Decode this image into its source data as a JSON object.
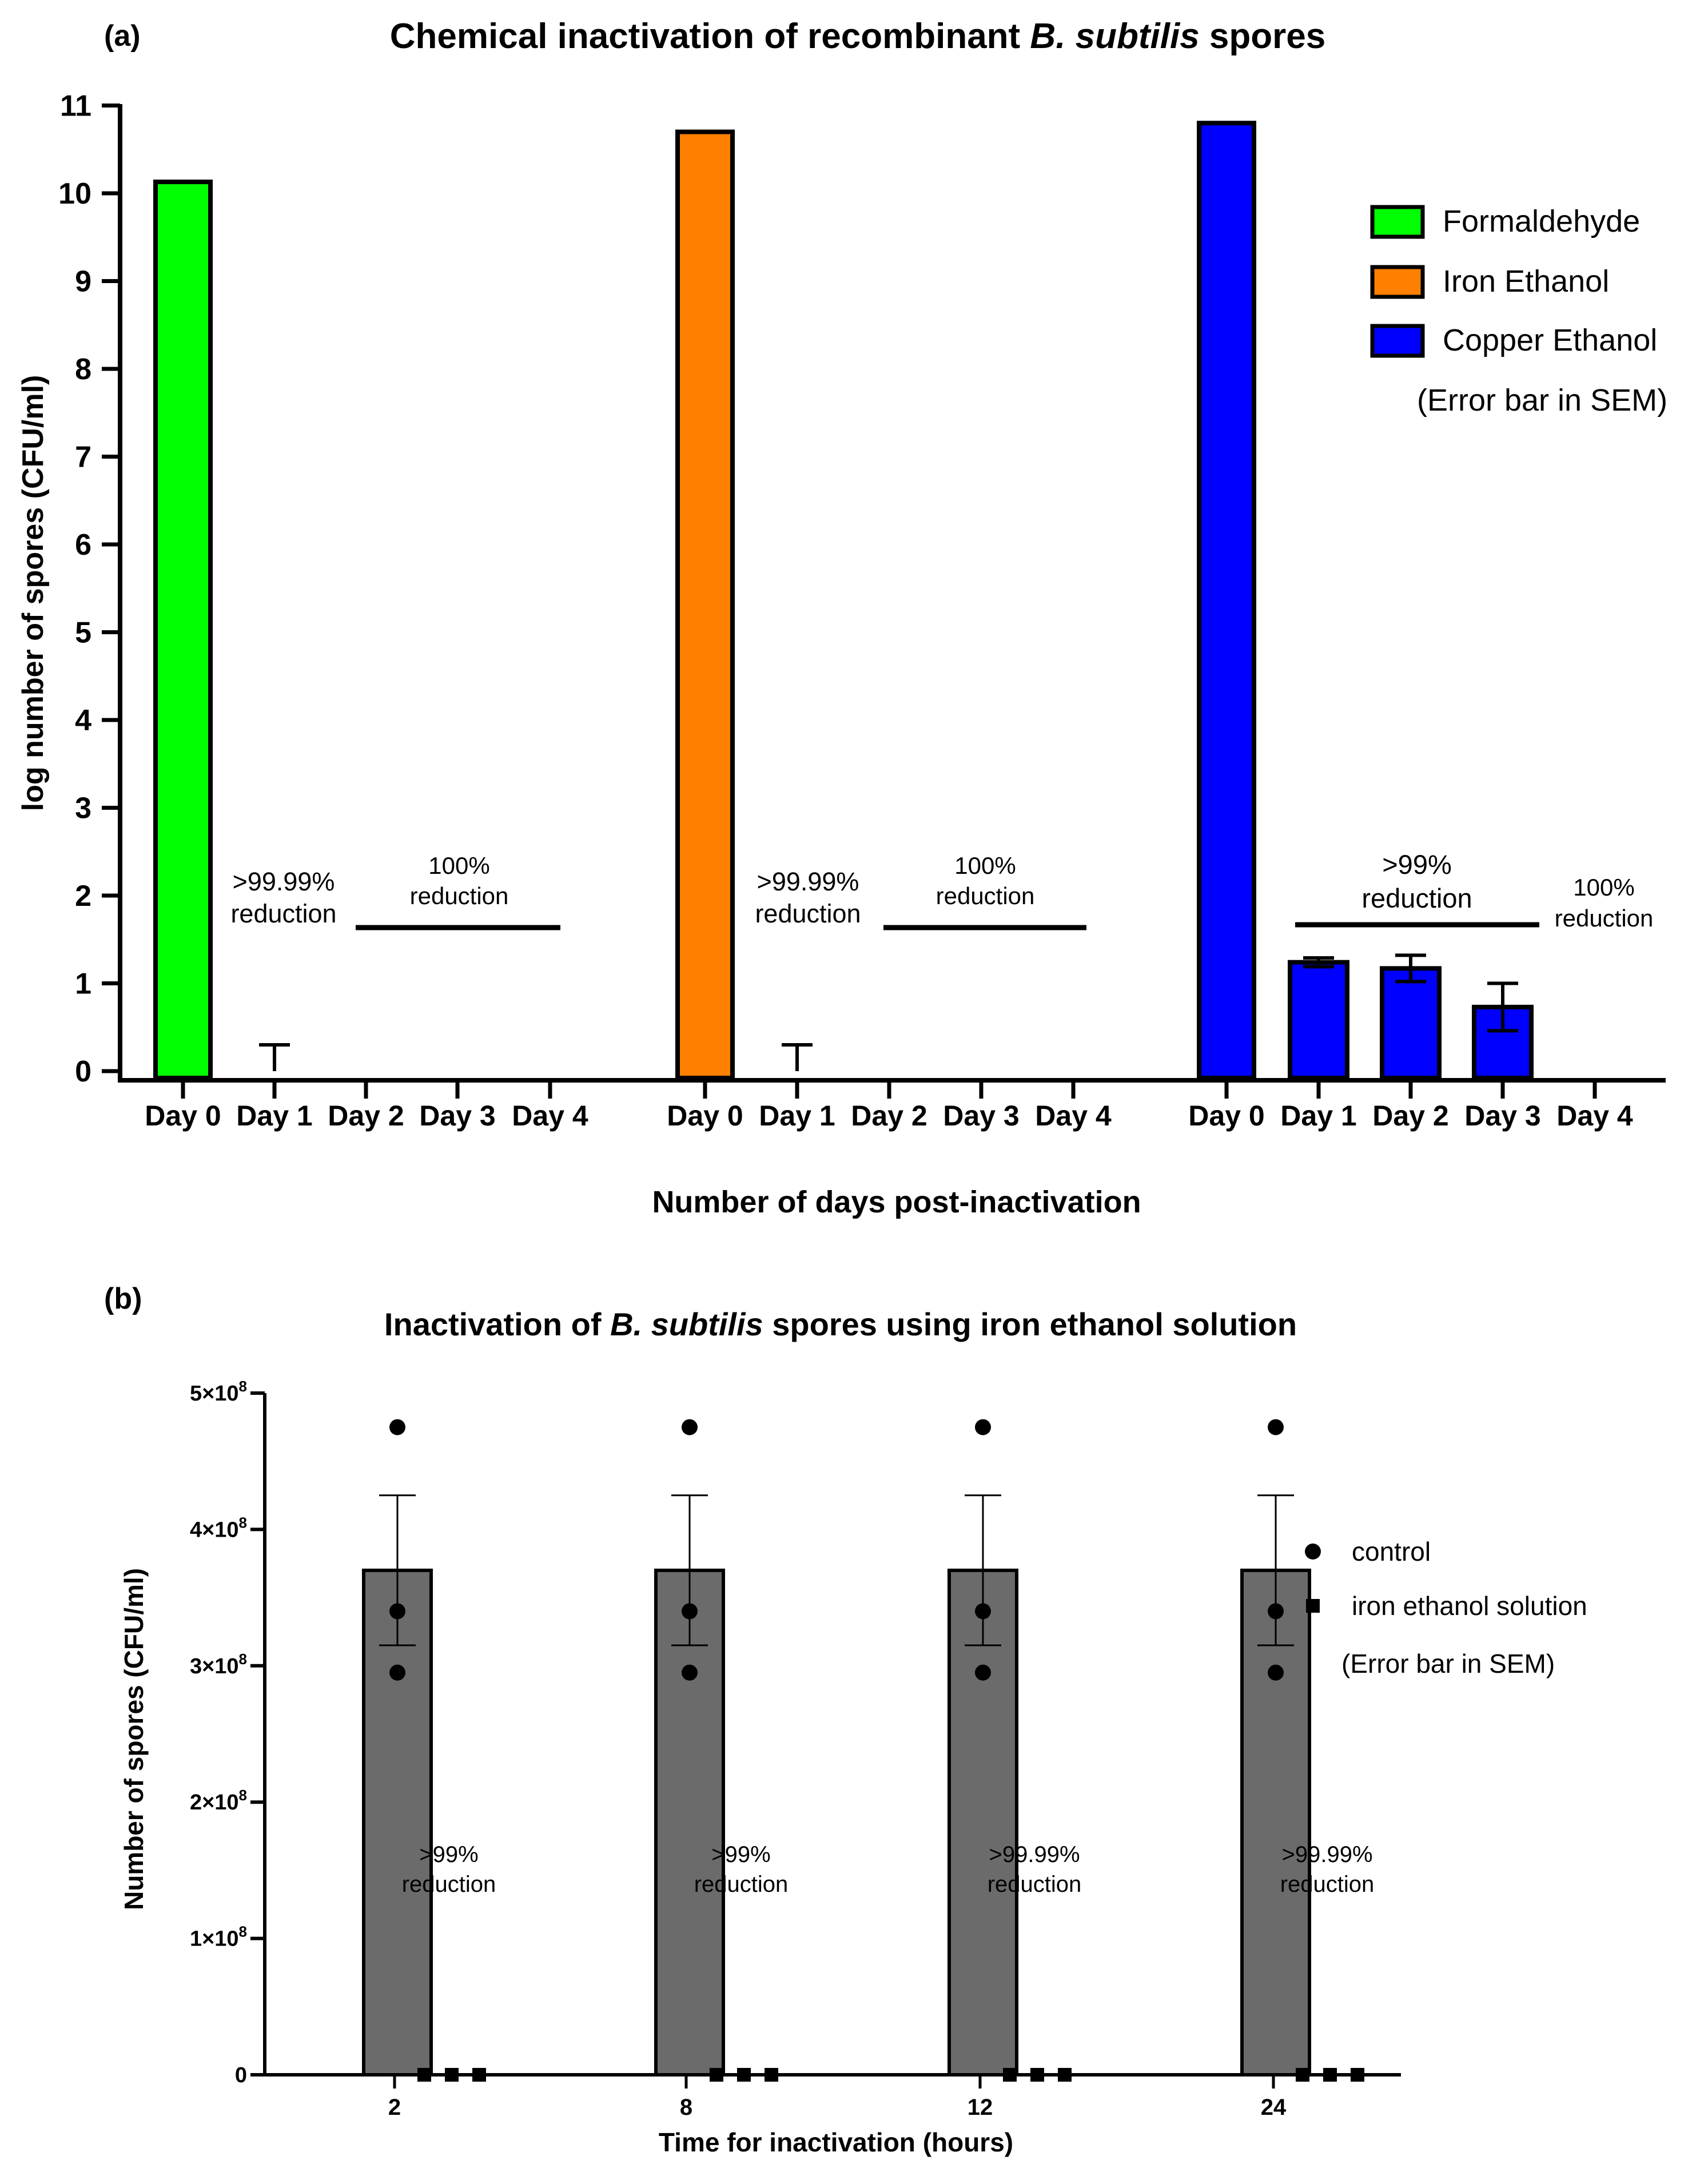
{
  "chart_data": [
    {
      "panel_label": "(a)",
      "type": "bar",
      "title_parts": [
        "Chemical inactivation of recombinant ",
        "B. subtilis",
        " spores"
      ],
      "xlabel": "Number of days post-inactivation",
      "ylabel": "log number of spores (CFU/ml)",
      "ylim": [
        0,
        11
      ],
      "yticks": [
        "0",
        "1",
        "2",
        "3",
        "4",
        "5",
        "6",
        "7",
        "8",
        "9",
        "10",
        "11"
      ],
      "categories": [
        "Day 0",
        "Day 1",
        "Day 2",
        "Day 3",
        "Day 4"
      ],
      "legend_note": "(Error bar in SEM)",
      "series": [
        {
          "name": "Formaldehyde",
          "color": "#00ff00",
          "values": [
            10.13,
            0,
            0,
            0,
            0
          ],
          "sem": [
            0,
            0.3,
            0,
            0,
            0
          ]
        },
        {
          "name": "Iron Ethanol",
          "color": "#ff8000",
          "values": [
            10.7,
            0,
            0,
            0,
            0
          ],
          "sem": [
            0,
            0.3,
            0,
            0,
            0
          ]
        },
        {
          "name": "Copper Ethanol",
          "color": "#0000ff",
          "values": [
            10.8,
            1.24,
            1.17,
            0.73,
            0
          ],
          "sem": [
            0,
            0.05,
            0.15,
            0.27,
            0
          ]
        }
      ],
      "annotations": [
        {
          "group": 0,
          "lines": [
            ">99.99%",
            "reduction"
          ]
        },
        {
          "group": 0,
          "lines": [
            "100%",
            "reduction"
          ]
        },
        {
          "group": 1,
          "lines": [
            ">99.99%",
            "reduction"
          ]
        },
        {
          "group": 1,
          "lines": [
            "100%",
            "reduction"
          ]
        },
        {
          "group": 2,
          "lines": [
            ">99%",
            "reduction"
          ]
        },
        {
          "group": 2,
          "lines": [
            "100%",
            "reduction"
          ]
        }
      ]
    },
    {
      "panel_label": "(b)",
      "type": "bar",
      "title_parts": [
        "Inactivation of ",
        "B. subtilis",
        " spores using iron ethanol solution"
      ],
      "xlabel": "Time for inactivation (hours)",
      "ylabel": "Number of spores (CFU/ml)",
      "ylim": [
        0,
        500000000
      ],
      "yticks": [
        {
          "value": 0,
          "mant": "0",
          "exp": ""
        },
        {
          "value": 100000000,
          "mant": "1×10",
          "exp": "8"
        },
        {
          "value": 200000000,
          "mant": "2×10",
          "exp": "8"
        },
        {
          "value": 300000000,
          "mant": "3×10",
          "exp": "8"
        },
        {
          "value": 400000000,
          "mant": "4×10",
          "exp": "8"
        },
        {
          "value": 500000000,
          "mant": "5×10",
          "exp": "8"
        }
      ],
      "categories": [
        "2",
        "8",
        "12",
        "24"
      ],
      "legend": [
        "control",
        "iron ethanol solution"
      ],
      "legend_note": "(Error bar in SEM)",
      "control": {
        "color": "#6b6b6b",
        "mean": 370000000,
        "sem": 55000000,
        "points": [
          475000000,
          340000000,
          295000000
        ]
      },
      "treated_points": [
        0,
        0,
        0
      ],
      "annotations": [
        [
          ">99%",
          "reduction"
        ],
        [
          ">99%",
          "reduction"
        ],
        [
          ">99.99%",
          "reduction"
        ],
        [
          ">99.99%",
          "reduction"
        ]
      ]
    }
  ]
}
